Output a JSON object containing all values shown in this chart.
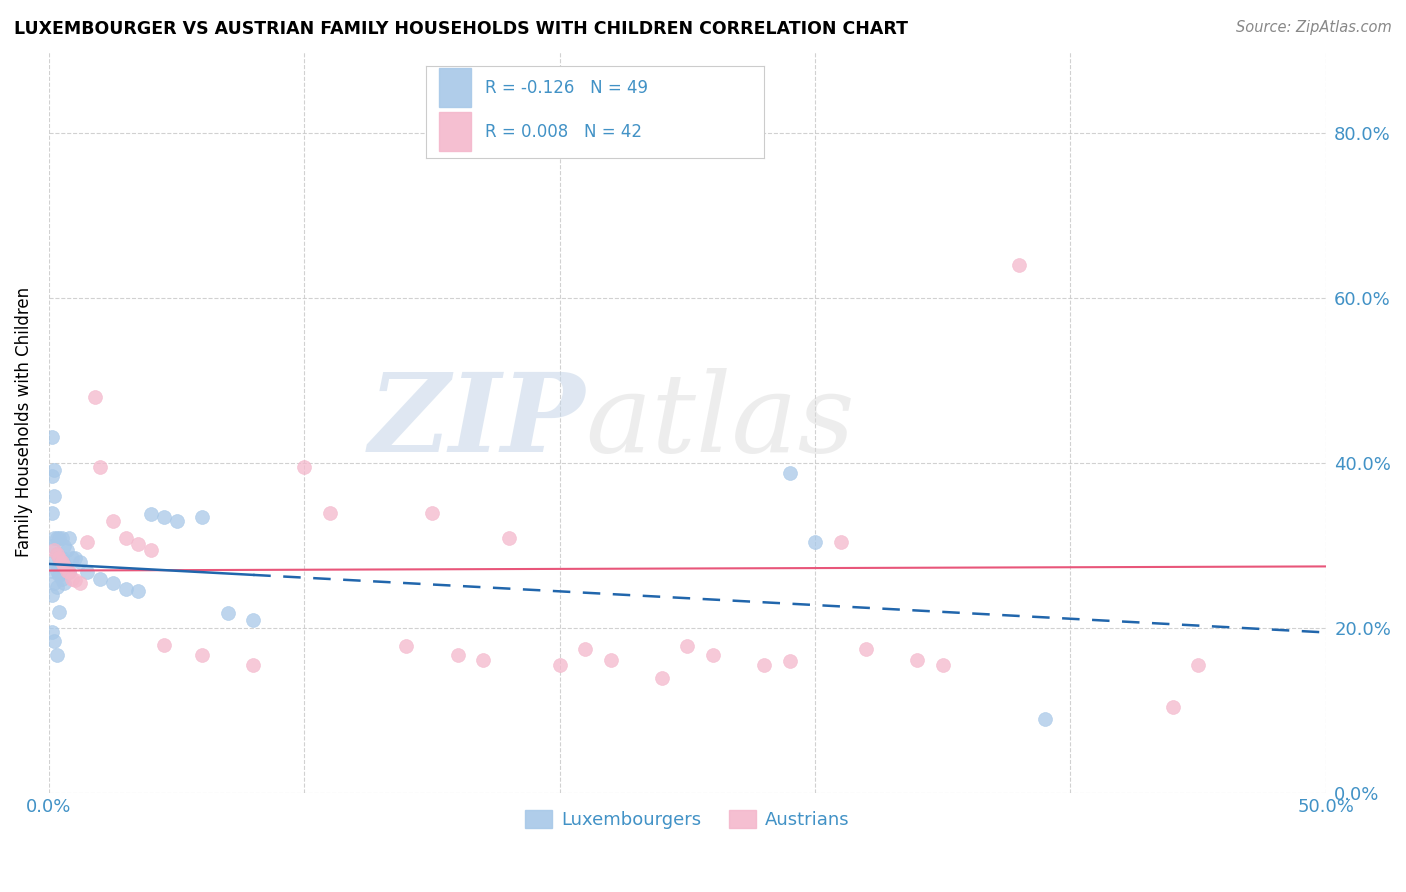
{
  "title": "LUXEMBOURGER VS AUSTRIAN FAMILY HOUSEHOLDS WITH CHILDREN CORRELATION CHART",
  "source": "Source: ZipAtlas.com",
  "ylabel": "Family Households with Children",
  "legend_label_blue": "Luxembourgers",
  "legend_label_pink": "Austrians",
  "blue_color": "#a8c8e8",
  "pink_color": "#f4b8cc",
  "blue_line_color": "#2166ac",
  "pink_line_color": "#e8567a",
  "axis_tick_color": "#4292c6",
  "grid_color": "#cccccc",
  "background_color": "#ffffff",
  "xlim": [
    0.0,
    0.5
  ],
  "ylim": [
    0.0,
    0.9
  ],
  "y_ticks": [
    0.0,
    0.2,
    0.4,
    0.6,
    0.8
  ],
  "x_ticks": [
    0.0,
    0.1,
    0.2,
    0.3,
    0.4,
    0.5
  ],
  "blue_R": -0.126,
  "blue_N": 49,
  "pink_R": 0.008,
  "pink_N": 42,
  "marker_size": 100,
  "blue_scatter_x": [
    0.001,
    0.001,
    0.001,
    0.001,
    0.001,
    0.001,
    0.001,
    0.002,
    0.002,
    0.002,
    0.002,
    0.002,
    0.002,
    0.003,
    0.003,
    0.003,
    0.003,
    0.003,
    0.004,
    0.004,
    0.004,
    0.004,
    0.005,
    0.005,
    0.005,
    0.006,
    0.006,
    0.006,
    0.007,
    0.007,
    0.008,
    0.008,
    0.009,
    0.01,
    0.012,
    0.015,
    0.02,
    0.025,
    0.03,
    0.035,
    0.04,
    0.045,
    0.05,
    0.06,
    0.07,
    0.08,
    0.29,
    0.3,
    0.39
  ],
  "blue_scatter_y": [
    0.432,
    0.385,
    0.34,
    0.3,
    0.27,
    0.24,
    0.195,
    0.392,
    0.36,
    0.31,
    0.28,
    0.255,
    0.185,
    0.31,
    0.29,
    0.27,
    0.25,
    0.168,
    0.31,
    0.285,
    0.265,
    0.22,
    0.31,
    0.285,
    0.26,
    0.3,
    0.278,
    0.255,
    0.295,
    0.268,
    0.31,
    0.268,
    0.285,
    0.285,
    0.28,
    0.268,
    0.26,
    0.255,
    0.248,
    0.245,
    0.338,
    0.335,
    0.33,
    0.335,
    0.218,
    0.21,
    0.388,
    0.305,
    0.09
  ],
  "pink_scatter_x": [
    0.002,
    0.003,
    0.004,
    0.005,
    0.006,
    0.007,
    0.008,
    0.009,
    0.01,
    0.012,
    0.015,
    0.018,
    0.02,
    0.025,
    0.03,
    0.035,
    0.04,
    0.045,
    0.06,
    0.08,
    0.1,
    0.11,
    0.14,
    0.15,
    0.16,
    0.17,
    0.18,
    0.2,
    0.21,
    0.22,
    0.24,
    0.25,
    0.26,
    0.28,
    0.29,
    0.31,
    0.32,
    0.34,
    0.35,
    0.38,
    0.44,
    0.45
  ],
  "pink_scatter_y": [
    0.295,
    0.29,
    0.285,
    0.28,
    0.275,
    0.27,
    0.268,
    0.26,
    0.258,
    0.255,
    0.305,
    0.48,
    0.395,
    0.33,
    0.31,
    0.302,
    0.295,
    0.18,
    0.168,
    0.155,
    0.395,
    0.34,
    0.178,
    0.34,
    0.168,
    0.162,
    0.31,
    0.155,
    0.175,
    0.162,
    0.14,
    0.178,
    0.168,
    0.155,
    0.16,
    0.305,
    0.175,
    0.162,
    0.155,
    0.64,
    0.105,
    0.155
  ],
  "blue_line_x0": 0.0,
  "blue_line_y0": 0.278,
  "blue_line_x1": 0.5,
  "blue_line_y1": 0.195,
  "pink_line_x0": 0.0,
  "pink_line_y0": 0.27,
  "pink_line_x1": 0.5,
  "pink_line_y1": 0.275
}
